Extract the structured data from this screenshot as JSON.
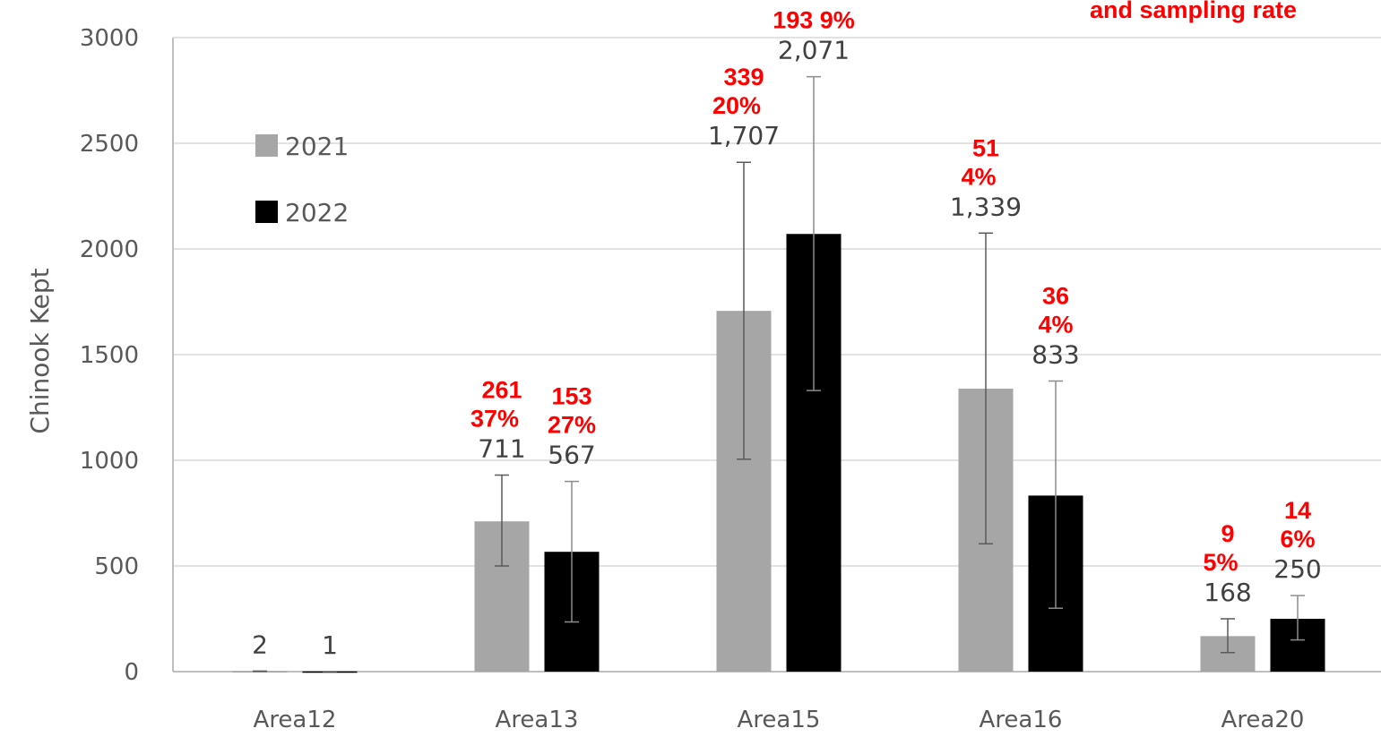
{
  "chart_data": {
    "type": "bar",
    "ylabel": "Chinook Kept",
    "ylim": [
      0,
      3000
    ],
    "yticks": [
      0,
      500,
      1000,
      1500,
      2000,
      2500,
      3000
    ],
    "grid": true,
    "legend_position": "top-left",
    "categories": [
      "Area12",
      "Area13",
      "Area15",
      "Area16",
      "Area20"
    ],
    "series": [
      {
        "name": "2021",
        "color": "#a6a6a6",
        "values": [
          2,
          711,
          1707,
          1339,
          168
        ],
        "value_labels": [
          "2",
          "711",
          "1,707",
          "1,339",
          "168"
        ],
        "error_high": [
          2,
          930,
          2410,
          2075,
          250
        ],
        "error_low": [
          2,
          500,
          1005,
          605,
          90
        ],
        "annotations": [
          [],
          [
            "261",
            "37%"
          ],
          [
            "339",
            "20%"
          ],
          [
            "51",
            "4%"
          ],
          [
            "9",
            "5%"
          ]
        ]
      },
      {
        "name": "2022",
        "color": "#000000",
        "values": [
          1,
          567,
          2071,
          833,
          250
        ],
        "value_labels": [
          "1",
          "567",
          "2,071",
          "833",
          "250"
        ],
        "error_high": [
          1,
          900,
          2815,
          1375,
          360
        ],
        "error_low": [
          1,
          235,
          1330,
          300,
          150
        ],
        "annotations": [
          [],
          [
            "153",
            "27%"
          ],
          [
            "193 9%"
          ],
          [
            "36",
            "4%"
          ],
          [
            "14",
            "6%"
          ]
        ]
      }
    ],
    "note": "and sampling rate"
  }
}
